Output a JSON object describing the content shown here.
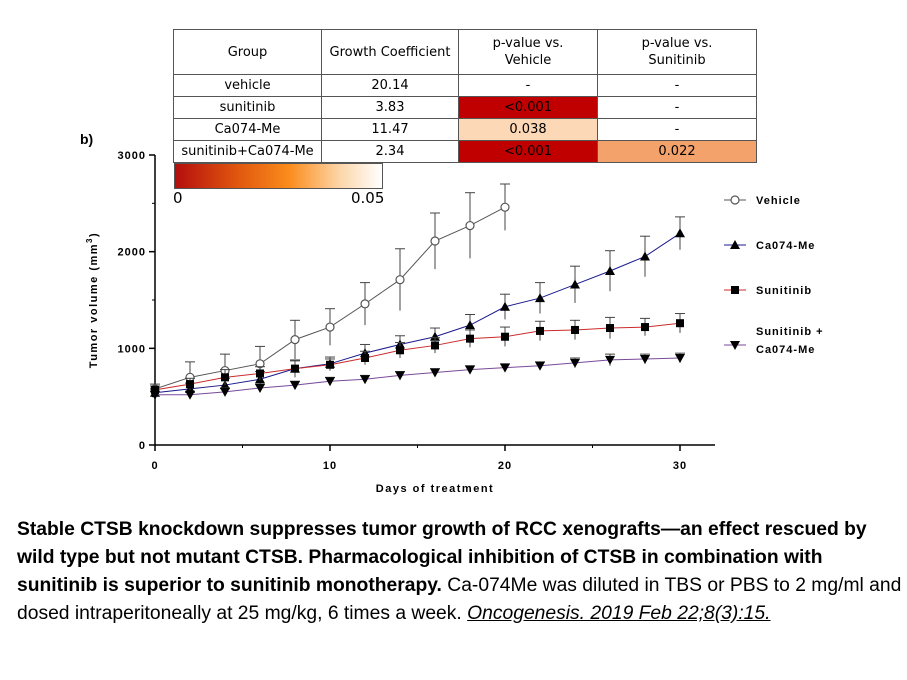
{
  "panel_label": "b)",
  "table": {
    "headers": [
      "Group",
      "Growth Coefficient",
      "p-value vs. Vehicle",
      "p-value vs. Sunitinib"
    ],
    "header_lines": [
      [
        "Group"
      ],
      [
        "Growth Coefficient"
      ],
      [
        "p-value vs.",
        "Vehicle"
      ],
      [
        "p-value vs.",
        "Sunitinib"
      ]
    ],
    "rows": [
      {
        "group": "vehicle",
        "gc": "20.14",
        "p_vehicle": "-",
        "p_sunitinib": "-",
        "p_vehicle_color": "#ffffff",
        "p_sunitinib_color": "#ffffff"
      },
      {
        "group": "sunitinib",
        "gc": "3.83",
        "p_vehicle": "<0.001",
        "p_sunitinib": "-",
        "p_vehicle_color": "#c00000",
        "p_sunitinib_color": "#ffffff"
      },
      {
        "group": "Ca074-Me",
        "gc": "11.47",
        "p_vehicle": "0.038",
        "p_sunitinib": "-",
        "p_vehicle_color": "#fcd8b7",
        "p_sunitinib_color": "#ffffff"
      },
      {
        "group": "sunitinib+Ca074-Me",
        "gc": "2.34",
        "p_vehicle": "<0.001",
        "p_sunitinib": "0.022",
        "p_vehicle_color": "#c00000",
        "p_sunitinib_color": "#f4a26b"
      }
    ]
  },
  "colorbar": {
    "min_label": "0",
    "max_label": "0.05"
  },
  "chart_data": {
    "type": "line",
    "xlabel": "Days of treatment",
    "ylabel": "Tumor volume (mm",
    "ylabel_sup": "3",
    "ylabel_end": ")",
    "xlim": [
      0,
      32
    ],
    "ylim": [
      0,
      3000
    ],
    "xticks": [
      0,
      10,
      20,
      30
    ],
    "xtick_labels": [
      "0",
      "10",
      "20",
      "30"
    ],
    "yticks": [
      0,
      1000,
      2000,
      3000
    ],
    "ytick_labels": [
      "0",
      "1000",
      "2000",
      "3000"
    ],
    "series": [
      {
        "name": "Vehicle",
        "color": "#555555",
        "marker": "circle",
        "x": [
          0,
          2,
          4,
          6,
          8,
          10,
          12,
          14,
          16,
          18,
          20
        ],
        "y": [
          580,
          700,
          770,
          840,
          1090,
          1220,
          1460,
          1710,
          2110,
          2270,
          2460
        ],
        "err": [
          50,
          160,
          170,
          180,
          200,
          190,
          220,
          320,
          290,
          340,
          240
        ]
      },
      {
        "name": "Ca074-Me",
        "color": "#1a1a8c",
        "marker": "triangle",
        "x": [
          0,
          2,
          4,
          6,
          8,
          10,
          12,
          14,
          16,
          18,
          20,
          22,
          24,
          26,
          28,
          30
        ],
        "y": [
          540,
          580,
          620,
          680,
          790,
          840,
          950,
          1040,
          1120,
          1240,
          1430,
          1520,
          1660,
          1800,
          1950,
          2190
        ],
        "err": [
          40,
          60,
          70,
          80,
          90,
          70,
          90,
          90,
          90,
          110,
          130,
          160,
          190,
          210,
          210,
          170
        ]
      },
      {
        "name": "Sunitinib",
        "color": "#cc2b2b",
        "marker": "square",
        "x": [
          0,
          2,
          4,
          6,
          8,
          10,
          12,
          14,
          16,
          18,
          20,
          22,
          24,
          26,
          28,
          30
        ],
        "y": [
          570,
          630,
          700,
          740,
          790,
          830,
          900,
          980,
          1030,
          1100,
          1120,
          1180,
          1190,
          1210,
          1220,
          1260
        ],
        "err": [
          40,
          60,
          80,
          70,
          80,
          60,
          70,
          80,
          80,
          90,
          100,
          100,
          100,
          110,
          90,
          100
        ]
      },
      {
        "name": "Sunitinib + Ca074-Me",
        "legend_lines": [
          "Sunitinib +",
          "Ca074-Me"
        ],
        "color": "#7a4a9a",
        "marker": "triangle-down",
        "x": [
          0,
          2,
          4,
          6,
          8,
          10,
          12,
          14,
          16,
          18,
          20,
          22,
          24,
          26,
          28,
          30
        ],
        "y": [
          520,
          520,
          550,
          590,
          620,
          660,
          680,
          720,
          750,
          780,
          800,
          820,
          850,
          880,
          890,
          900
        ],
        "err": [
          30,
          30,
          40,
          40,
          40,
          40,
          40,
          40,
          40,
          40,
          40,
          40,
          50,
          60,
          50,
          50
        ]
      }
    ]
  },
  "caption": {
    "bold": "Stable CTSB knockdown suppresses tumor growth of RCC xenografts—an effect rescued by wild type but not mutant CTSB. Pharmacological inhibition of CTSB in combination with sunitinib is superior to sunitinib monotherapy.",
    "body": "Ca-074Me was diluted in TBS or PBS to 2 mg/ml and dosed intraperitoneally at 25 mg/kg, 6 times a week. ",
    "citation": "Oncogenesis. 2019 Feb 22;8(3):15."
  }
}
